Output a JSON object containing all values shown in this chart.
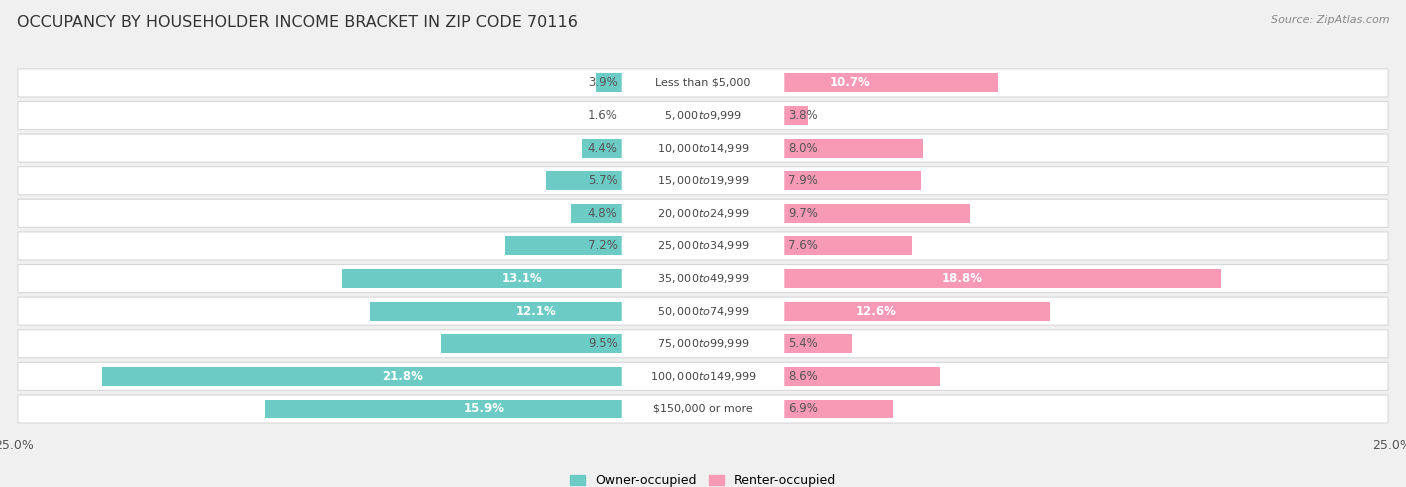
{
  "title": "OCCUPANCY BY HOUSEHOLDER INCOME BRACKET IN ZIP CODE 70116",
  "source": "Source: ZipAtlas.com",
  "categories": [
    "Less than $5,000",
    "$5,000 to $9,999",
    "$10,000 to $14,999",
    "$15,000 to $19,999",
    "$20,000 to $24,999",
    "$25,000 to $34,999",
    "$35,000 to $49,999",
    "$50,000 to $74,999",
    "$75,000 to $99,999",
    "$100,000 to $149,999",
    "$150,000 or more"
  ],
  "owner_values": [
    3.9,
    1.6,
    4.4,
    5.7,
    4.8,
    7.2,
    13.1,
    12.1,
    9.5,
    21.8,
    15.9
  ],
  "renter_values": [
    10.7,
    3.8,
    8.0,
    7.9,
    9.7,
    7.6,
    18.8,
    12.6,
    5.4,
    8.6,
    6.9
  ],
  "owner_color": "#6CCBC4",
  "renter_color": "#F899B5",
  "background_color": "#f0f0f0",
  "bar_background": "#ffffff",
  "axis_max": 25.0,
  "title_fontsize": 11.5,
  "label_fontsize": 8.5,
  "category_fontsize": 8.0,
  "legend_fontsize": 9,
  "source_fontsize": 8,
  "inside_label_threshold": 10.0
}
